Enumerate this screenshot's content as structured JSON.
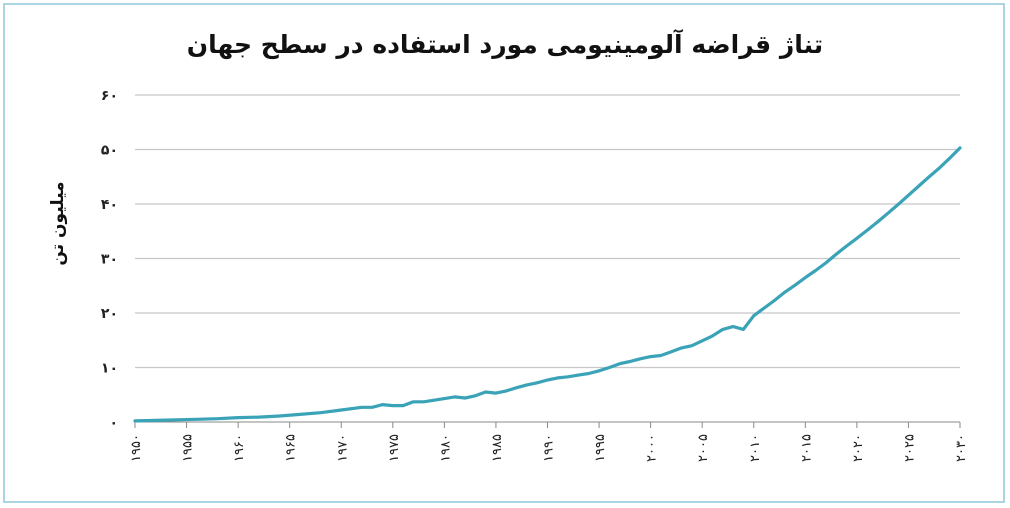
{
  "chart_data": {
    "type": "line",
    "title": "تناژ قراضه آلومینیومی مورد استفاده در سطح جهان",
    "ylabel": "میلیون تن",
    "xlabel": "",
    "ylim": [
      0,
      60
    ],
    "xlim": [
      1950,
      2030
    ],
    "yticks": [
      0,
      10,
      20,
      30,
      40,
      50,
      60
    ],
    "ytick_labels": [
      "٠",
      "١٠",
      "٢٠",
      "٣٠",
      "۴٠",
      "۵٠",
      "۶٠"
    ],
    "xticks": [
      1950,
      1955,
      1960,
      1965,
      1970,
      1975,
      1980,
      1985,
      1990,
      1995,
      2000,
      2005,
      2010,
      2015,
      2020,
      2025,
      2030
    ],
    "xtick_labels": [
      "١٩۵٠",
      "١٩۵۵",
      "١٩۶٠",
      "١٩۶۵",
      "١٩٧٠",
      "١٩٧۵",
      "١٩٨٠",
      "١٩٨۵",
      "١٩٩٠",
      "١٩٩۵",
      "٢٠٠٠",
      "٢٠٠۵",
      "٢٠١٠",
      "٢٠١۵",
      "٢٠٢٠",
      "٢٠٢۵",
      "٢٠٣٠"
    ],
    "grid": true,
    "line_color": "#3aa3b8",
    "series": [
      {
        "x": [
          1950,
          1952,
          1954,
          1956,
          1958,
          1960,
          1962,
          1964,
          1966,
          1968,
          1970,
          1972,
          1973,
          1974,
          1975,
          1976,
          1977,
          1978,
          1979,
          1980,
          1981,
          1982,
          1983,
          1984,
          1985,
          1986,
          1987,
          1988,
          1989,
          1990,
          1991,
          1992,
          1993,
          1994,
          1995,
          1996,
          1997,
          1998,
          1999,
          2000,
          2001,
          2002,
          2003,
          2004,
          2005,
          2006,
          2007,
          2008,
          2009,
          2010,
          2011,
          2012,
          2013,
          2014,
          2015,
          2016,
          2017,
          2018,
          2019,
          2020,
          2021,
          2022,
          2023,
          2024,
          2025,
          2026,
          2027,
          2028,
          2029,
          2030
        ],
        "y": [
          0.2,
          0.3,
          0.4,
          0.5,
          0.6,
          0.8,
          0.9,
          1.1,
          1.4,
          1.7,
          2.2,
          2.7,
          2.7,
          3.2,
          3.0,
          3.0,
          3.7,
          3.7,
          4.0,
          4.3,
          4.6,
          4.4,
          4.8,
          5.5,
          5.3,
          5.7,
          6.3,
          6.8,
          7.2,
          7.7,
          8.1,
          8.3,
          8.6,
          8.9,
          9.4,
          10.0,
          10.7,
          11.1,
          11.6,
          12.0,
          12.2,
          12.9,
          13.6,
          14.0,
          14.9,
          15.8,
          17.0,
          17.5,
          17.0,
          19.5,
          20.9,
          22.3,
          23.8,
          25.1,
          26.5,
          27.8,
          29.2,
          30.8,
          32.3,
          33.7,
          35.2,
          36.7,
          38.3,
          39.9,
          41.6,
          43.3,
          45.0,
          46.6,
          48.4,
          50.3
        ]
      }
    ]
  }
}
